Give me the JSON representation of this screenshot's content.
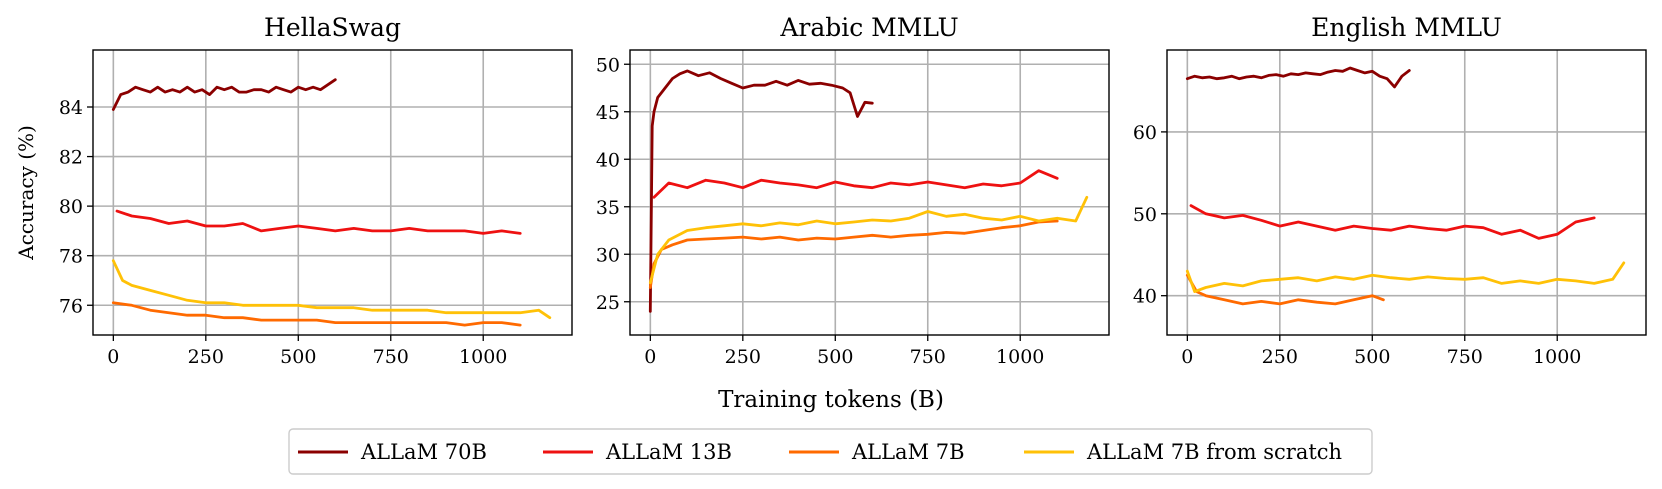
{
  "chart_data": [
    {
      "type": "line",
      "title": "HellaSwag",
      "ylabel": "Accuracy (%)",
      "xlabel": "",
      "xlim": [
        -55,
        1240
      ],
      "ylim": [
        74.8,
        86.3
      ],
      "xticks": [
        0,
        250,
        500,
        750,
        1000
      ],
      "yticks": [
        76,
        78,
        80,
        82,
        84
      ],
      "grid": true,
      "series": [
        {
          "name": "ALLaM 70B",
          "color": "#8b0000",
          "x": [
            0,
            20,
            40,
            60,
            80,
            100,
            120,
            140,
            160,
            180,
            200,
            220,
            240,
            260,
            280,
            300,
            320,
            340,
            360,
            380,
            400,
            420,
            440,
            460,
            480,
            500,
            520,
            540,
            560,
            580,
            600
          ],
          "y": [
            83.9,
            84.5,
            84.6,
            84.8,
            84.7,
            84.6,
            84.8,
            84.6,
            84.7,
            84.6,
            84.8,
            84.6,
            84.7,
            84.5,
            84.8,
            84.7,
            84.8,
            84.6,
            84.6,
            84.7,
            84.7,
            84.6,
            84.8,
            84.7,
            84.6,
            84.8,
            84.7,
            84.8,
            84.7,
            84.9,
            85.1
          ]
        },
        {
          "name": "ALLaM 13B",
          "color": "#ee1111",
          "x": [
            10,
            50,
            100,
            150,
            200,
            250,
            300,
            350,
            400,
            450,
            500,
            550,
            600,
            650,
            700,
            750,
            800,
            850,
            900,
            950,
            1000,
            1050,
            1100
          ],
          "y": [
            79.8,
            79.6,
            79.5,
            79.3,
            79.4,
            79.2,
            79.2,
            79.3,
            79.0,
            79.1,
            79.2,
            79.1,
            79.0,
            79.1,
            79.0,
            79.0,
            79.1,
            79.0,
            79.0,
            79.0,
            78.9,
            79.0,
            78.9
          ]
        },
        {
          "name": "ALLaM 7B",
          "color": "#ff6a00",
          "x": [
            0,
            50,
            100,
            150,
            200,
            250,
            300,
            350,
            400,
            450,
            500,
            550,
            600,
            650,
            700,
            750,
            800,
            850,
            900,
            950,
            1000,
            1050,
            1100
          ],
          "y": [
            76.1,
            76.0,
            75.8,
            75.7,
            75.6,
            75.6,
            75.5,
            75.5,
            75.4,
            75.4,
            75.4,
            75.4,
            75.3,
            75.3,
            75.3,
            75.3,
            75.3,
            75.3,
            75.3,
            75.2,
            75.3,
            75.3,
            75.2
          ]
        },
        {
          "name": "ALLaM 7B from scratch",
          "color": "#ffc107",
          "x": [
            0,
            25,
            50,
            100,
            150,
            200,
            250,
            300,
            350,
            400,
            450,
            500,
            550,
            600,
            650,
            700,
            750,
            800,
            850,
            900,
            950,
            1000,
            1050,
            1100,
            1150,
            1180
          ],
          "y": [
            77.8,
            77.0,
            76.8,
            76.6,
            76.4,
            76.2,
            76.1,
            76.1,
            76.0,
            76.0,
            76.0,
            76.0,
            75.9,
            75.9,
            75.9,
            75.8,
            75.8,
            75.8,
            75.8,
            75.7,
            75.7,
            75.7,
            75.7,
            75.7,
            75.8,
            75.5
          ]
        }
      ]
    },
    {
      "type": "line",
      "title": "Arabic MMLU",
      "ylabel": "",
      "xlabel": "",
      "xlim": [
        -55,
        1240
      ],
      "ylim": [
        21.5,
        51.5
      ],
      "xticks": [
        0,
        250,
        500,
        750,
        1000
      ],
      "yticks": [
        25,
        30,
        35,
        40,
        45,
        50
      ],
      "grid": true,
      "series": [
        {
          "name": "ALLaM 70B",
          "color": "#8b0000",
          "x": [
            0,
            5,
            10,
            20,
            40,
            60,
            80,
            100,
            130,
            160,
            190,
            220,
            250,
            280,
            310,
            340,
            370,
            400,
            430,
            460,
            490,
            520,
            540,
            560,
            580,
            600
          ],
          "y": [
            24.0,
            43.5,
            45.0,
            46.5,
            47.5,
            48.5,
            49.0,
            49.3,
            48.8,
            49.1,
            48.5,
            48.0,
            47.5,
            47.8,
            47.8,
            48.2,
            47.8,
            48.3,
            47.9,
            48.0,
            47.8,
            47.5,
            47.0,
            44.5,
            46.0,
            45.9
          ]
        },
        {
          "name": "ALLaM 13B",
          "color": "#ee1111",
          "x": [
            10,
            50,
            100,
            150,
            200,
            250,
            300,
            350,
            400,
            450,
            500,
            550,
            600,
            650,
            700,
            750,
            800,
            850,
            900,
            950,
            1000,
            1050,
            1100
          ],
          "y": [
            36.0,
            37.5,
            37.0,
            37.8,
            37.5,
            37.0,
            37.8,
            37.5,
            37.3,
            37.0,
            37.6,
            37.2,
            37.0,
            37.5,
            37.3,
            37.6,
            37.3,
            37.0,
            37.4,
            37.2,
            37.5,
            38.8,
            38.0
          ]
        },
        {
          "name": "ALLaM 7B",
          "color": "#ff6a00",
          "x": [
            0,
            10,
            30,
            60,
            100,
            150,
            200,
            250,
            300,
            350,
            400,
            450,
            500,
            550,
            600,
            650,
            700,
            750,
            800,
            850,
            900,
            950,
            1000,
            1050,
            1100
          ],
          "y": [
            26.5,
            29.0,
            30.5,
            31.0,
            31.5,
            31.6,
            31.7,
            31.8,
            31.6,
            31.8,
            31.5,
            31.7,
            31.6,
            31.8,
            32.0,
            31.8,
            32.0,
            32.1,
            32.3,
            32.2,
            32.5,
            32.8,
            33.0,
            33.4,
            33.5
          ]
        },
        {
          "name": "ALLaM 7B from scratch",
          "color": "#ffc107",
          "x": [
            0,
            20,
            50,
            100,
            150,
            200,
            250,
            300,
            350,
            400,
            450,
            500,
            550,
            600,
            650,
            700,
            750,
            800,
            850,
            900,
            950,
            1000,
            1050,
            1100,
            1150,
            1180
          ],
          "y": [
            27.0,
            30.0,
            31.5,
            32.5,
            32.8,
            33.0,
            33.2,
            33.0,
            33.3,
            33.1,
            33.5,
            33.2,
            33.4,
            33.6,
            33.5,
            33.8,
            34.5,
            34.0,
            34.2,
            33.8,
            33.6,
            34.0,
            33.5,
            33.8,
            33.5,
            36.0
          ]
        }
      ]
    },
    {
      "type": "line",
      "title": "English MMLU",
      "ylabel": "",
      "xlabel": "",
      "xlim": [
        -55,
        1240
      ],
      "ylim": [
        35.2,
        70.0
      ],
      "xticks": [
        0,
        250,
        500,
        750,
        1000
      ],
      "yticks": [
        40,
        50,
        60
      ],
      "grid": true,
      "series": [
        {
          "name": "ALLaM 70B",
          "color": "#8b0000",
          "x": [
            0,
            20,
            40,
            60,
            80,
            100,
            120,
            140,
            160,
            180,
            200,
            220,
            240,
            260,
            280,
            300,
            320,
            340,
            360,
            380,
            400,
            420,
            440,
            460,
            480,
            500,
            520,
            540,
            560,
            580,
            600
          ],
          "y": [
            66.5,
            66.8,
            66.6,
            66.7,
            66.5,
            66.6,
            66.8,
            66.5,
            66.7,
            66.8,
            66.6,
            66.9,
            67.0,
            66.8,
            67.1,
            67.0,
            67.2,
            67.1,
            67.0,
            67.3,
            67.5,
            67.4,
            67.8,
            67.5,
            67.2,
            67.4,
            66.8,
            66.5,
            65.5,
            66.8,
            67.5
          ]
        },
        {
          "name": "ALLaM 13B",
          "color": "#ee1111",
          "x": [
            10,
            50,
            100,
            150,
            200,
            250,
            300,
            350,
            400,
            450,
            500,
            550,
            600,
            650,
            700,
            750,
            800,
            850,
            900,
            950,
            1000,
            1050,
            1100
          ],
          "y": [
            51.0,
            50.0,
            49.5,
            49.8,
            49.2,
            48.5,
            49.0,
            48.5,
            48.0,
            48.5,
            48.2,
            48.0,
            48.5,
            48.2,
            48.0,
            48.5,
            48.3,
            47.5,
            48.0,
            47.0,
            47.5,
            49.0,
            49.5
          ]
        },
        {
          "name": "ALLaM 7B",
          "color": "#ff6a00",
          "x": [
            0,
            25,
            50,
            100,
            150,
            200,
            250,
            300,
            350,
            400,
            450,
            500,
            530
          ],
          "y": [
            42.5,
            40.5,
            40.0,
            39.5,
            39.0,
            39.3,
            39.0,
            39.5,
            39.2,
            39.0,
            39.5,
            40.0,
            39.5
          ]
        },
        {
          "name": "ALLaM 7B from scratch",
          "color": "#ffc107",
          "x": [
            0,
            20,
            50,
            100,
            150,
            200,
            250,
            300,
            350,
            400,
            450,
            500,
            550,
            600,
            650,
            700,
            750,
            800,
            850,
            900,
            950,
            1000,
            1050,
            1100,
            1150,
            1180
          ],
          "y": [
            43.0,
            40.5,
            41.0,
            41.5,
            41.2,
            41.8,
            42.0,
            42.2,
            41.8,
            42.3,
            42.0,
            42.5,
            42.2,
            42.0,
            42.3,
            42.1,
            42.0,
            42.2,
            41.5,
            41.8,
            41.5,
            42.0,
            41.8,
            41.5,
            42.0,
            44.0
          ]
        }
      ]
    }
  ],
  "figure": {
    "xlabel": "Training tokens (B)",
    "legend_position": "bottom-center",
    "legend": [
      {
        "label": "ALLaM 70B",
        "color": "#8b0000"
      },
      {
        "label": "ALLaM 13B",
        "color": "#ee1111"
      },
      {
        "label": "ALLaM 7B",
        "color": "#ff6a00"
      },
      {
        "label": "ALLaM 7B from scratch",
        "color": "#ffc107"
      }
    ]
  }
}
